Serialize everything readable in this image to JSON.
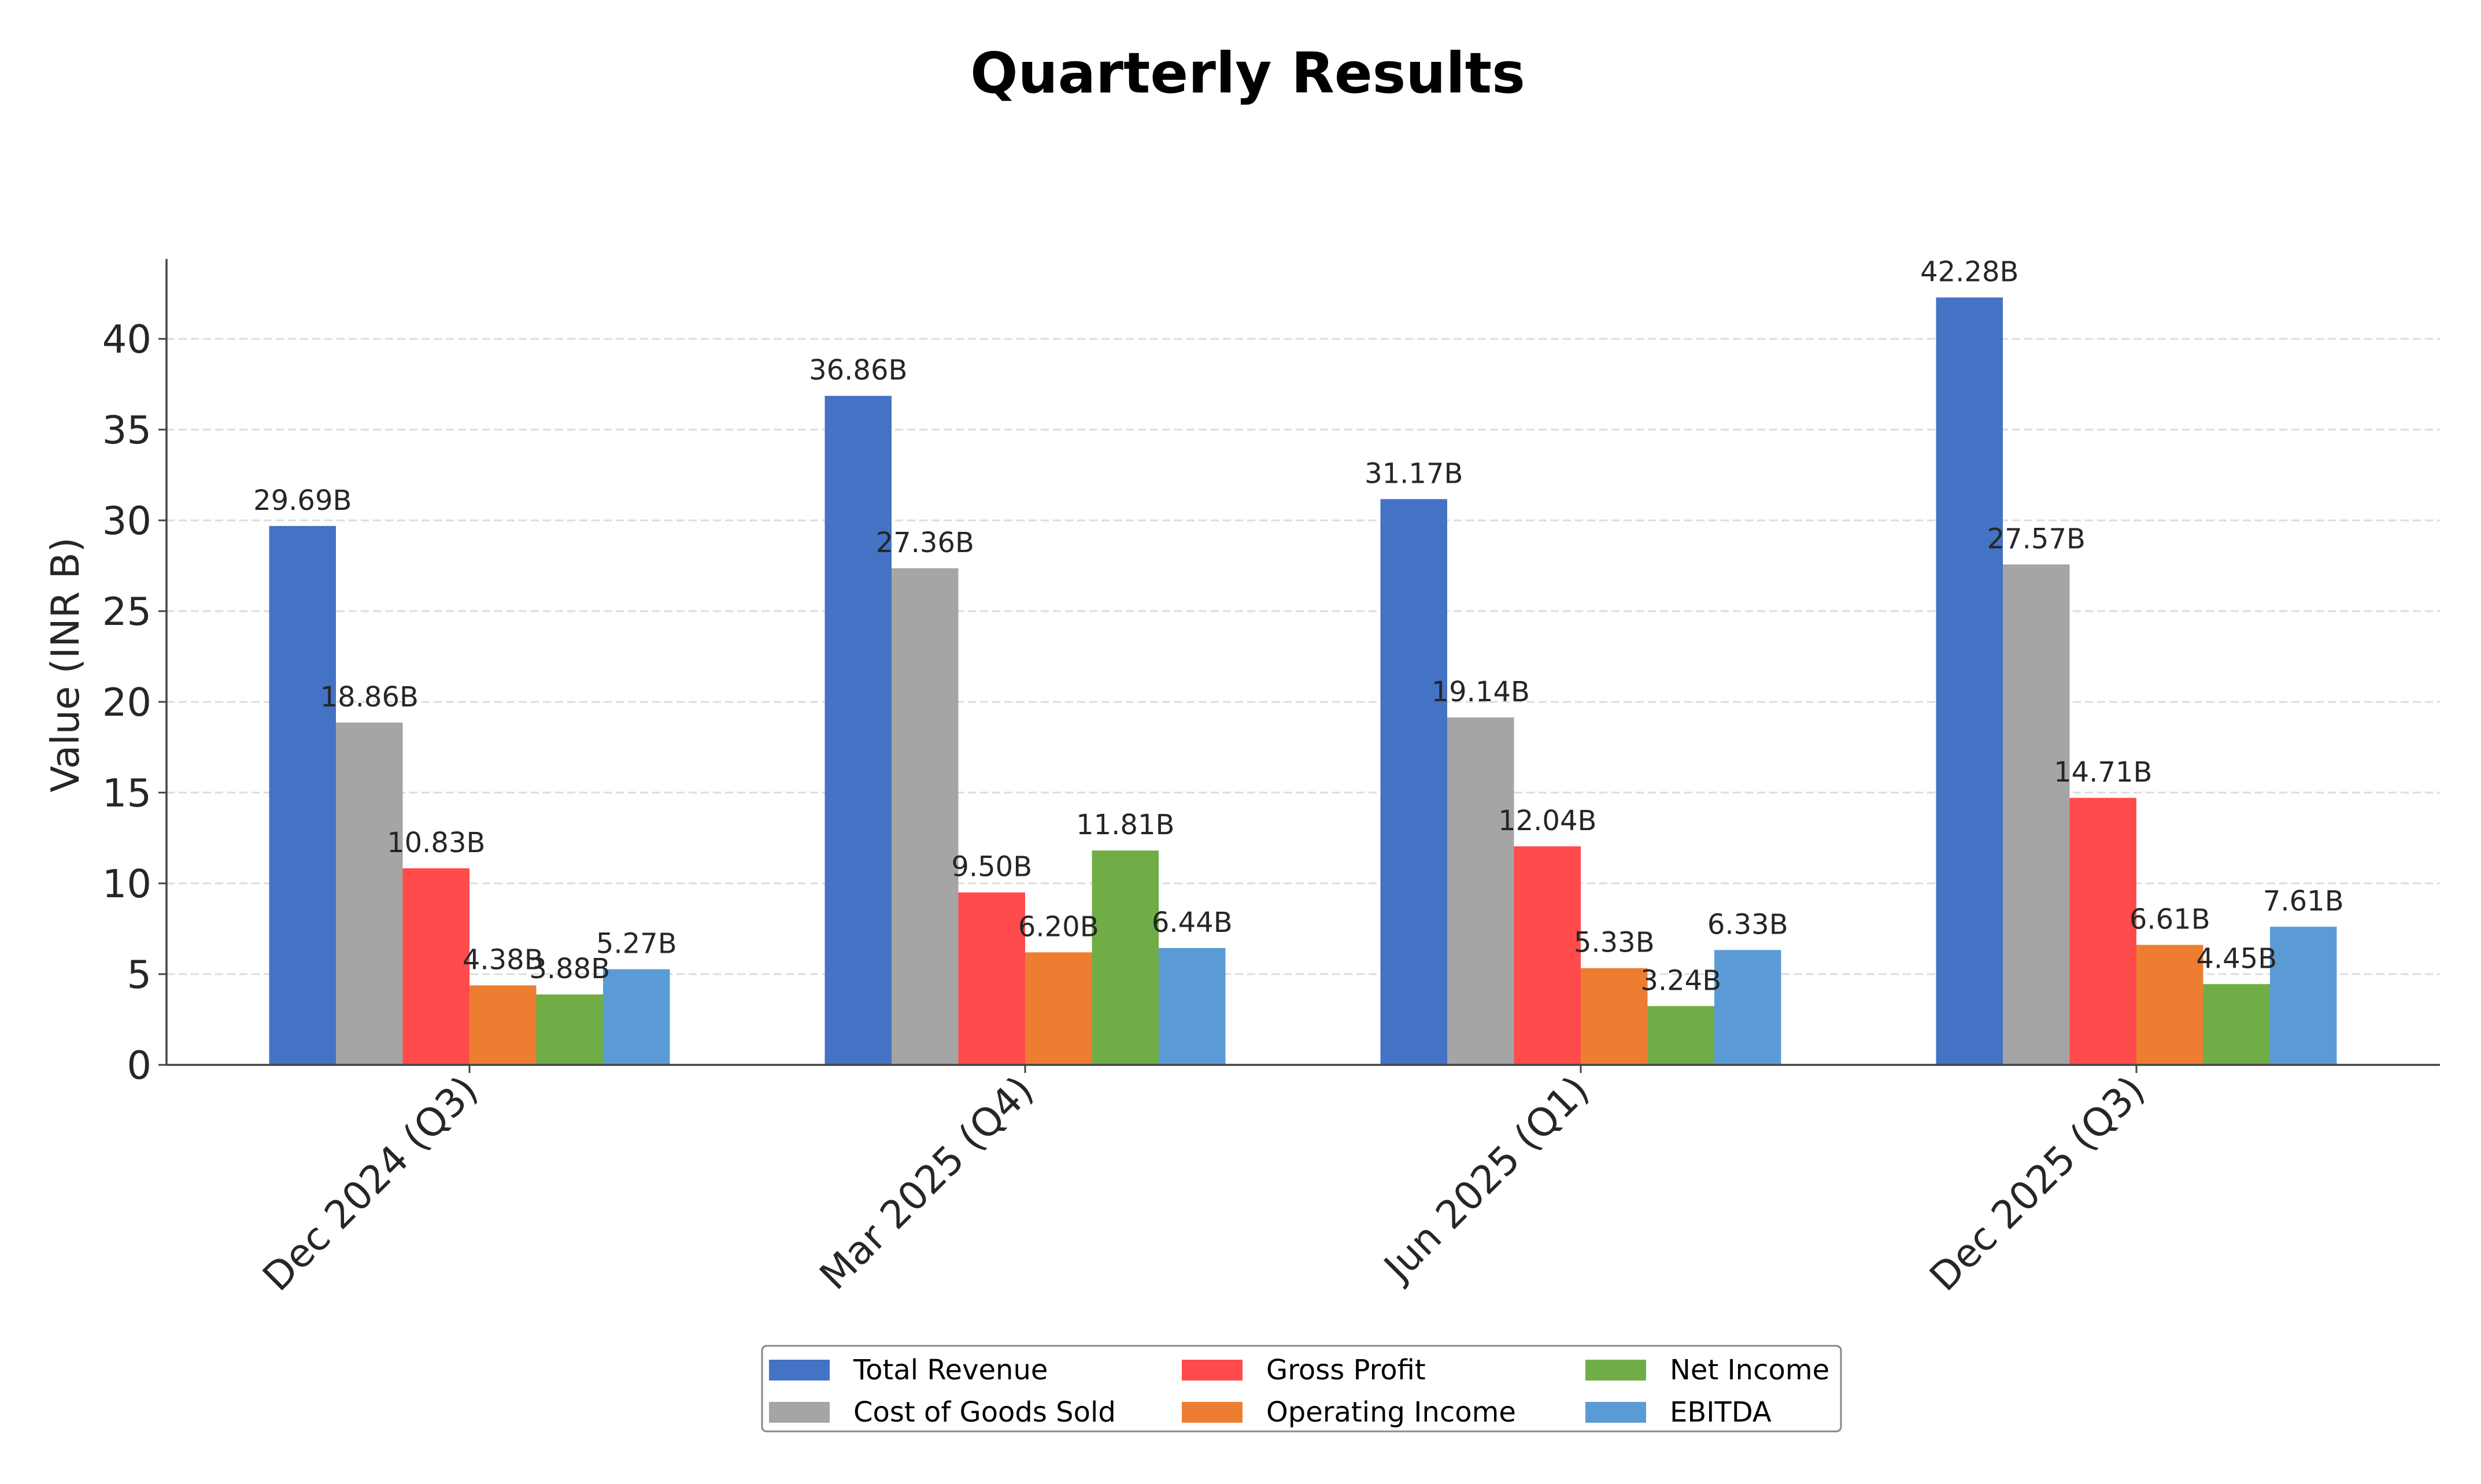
{
  "chart_data": {
    "type": "bar",
    "title": "Quarterly Results",
    "xlabel": "",
    "ylabel": "Value (INR B)",
    "ylim": [
      0,
      44.4
    ],
    "yticks": [
      0,
      5,
      10,
      15,
      20,
      25,
      30,
      35,
      40
    ],
    "grid": true,
    "legend_position": "bottom-center",
    "categories": [
      "Dec 2024 (Q3)",
      "Mar 2025 (Q4)",
      "Jun 2025 (Q1)",
      "Dec 2025 (Q3)"
    ],
    "series": [
      {
        "name": "Total Revenue",
        "color": "#4472c4",
        "values": [
          29.69,
          36.86,
          31.17,
          42.28
        ],
        "labels": [
          "29.69B",
          "36.86B",
          "31.17B",
          "42.28B"
        ]
      },
      {
        "name": "Cost of Goods Sold",
        "color": "#a5a5a5",
        "values": [
          18.86,
          27.36,
          19.14,
          27.57
        ],
        "labels": [
          "18.86B",
          "27.36B",
          "19.14B",
          "27.57B"
        ]
      },
      {
        "name": "Gross Profit",
        "color": "#ff4b4b",
        "values": [
          10.83,
          9.5,
          12.04,
          14.71
        ],
        "labels": [
          "10.83B",
          "9.50B",
          "12.04B",
          "14.71B"
        ]
      },
      {
        "name": "Operating Income",
        "color": "#ed7d31",
        "values": [
          4.38,
          6.2,
          5.33,
          6.61
        ],
        "labels": [
          "4.38B",
          "6.20B",
          "5.33B",
          "6.61B"
        ]
      },
      {
        "name": "Net Income",
        "color": "#70ad47",
        "values": [
          3.88,
          11.81,
          3.24,
          4.45
        ],
        "labels": [
          "3.88B",
          "11.81B",
          "3.24B",
          "4.45B"
        ]
      },
      {
        "name": "EBITDA",
        "color": "#5b9bd5",
        "values": [
          5.27,
          6.44,
          6.33,
          7.61
        ],
        "labels": [
          "5.27B",
          "6.44B",
          "6.33B",
          "7.61B"
        ]
      }
    ]
  }
}
